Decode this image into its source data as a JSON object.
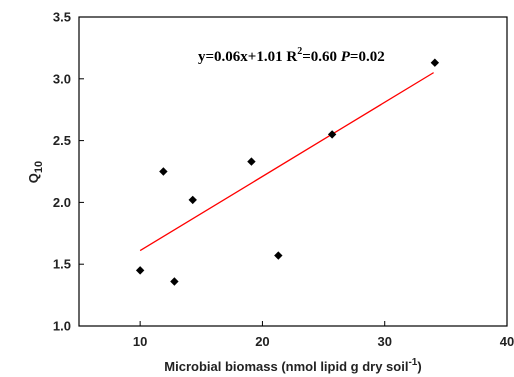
{
  "chart_data": {
    "type": "scatter",
    "xlabel": "Microbial biomass (nmol lipid g dry soil",
    "xlabel_sup": "-1",
    "xlabel_close": ")",
    "ylabel": "Q",
    "ylabel_sub": "10",
    "xlim": [
      5,
      40
    ],
    "ylim": [
      1.0,
      3.5
    ],
    "xticks": [
      10,
      20,
      30,
      40
    ],
    "xtick_labels": [
      "10",
      "20",
      "30",
      "40"
    ],
    "yticks": [
      1.0,
      1.5,
      2.0,
      2.5,
      3.0,
      3.5
    ],
    "ytick_labels": [
      "1.0",
      "1.5",
      "2.0",
      "2.5",
      "3.0",
      "3.5"
    ],
    "points": [
      {
        "x": 10.0,
        "y": 1.45
      },
      {
        "x": 11.9,
        "y": 2.25
      },
      {
        "x": 12.8,
        "y": 1.36
      },
      {
        "x": 14.3,
        "y": 2.02
      },
      {
        "x": 19.1,
        "y": 2.33
      },
      {
        "x": 21.3,
        "y": 1.57
      },
      {
        "x": 25.7,
        "y": 2.55
      },
      {
        "x": 34.1,
        "y": 3.13
      }
    ],
    "fit_line": {
      "x_start": 10.0,
      "x_end": 34.0,
      "slope": 0.06,
      "intercept": 1.01,
      "color": "#ff0000"
    },
    "point_color": "#000000",
    "equation": {
      "part1": "y=0.06x+1.01  R",
      "sup": "2",
      "part2": "=0.60  ",
      "p_label": "P",
      "p_value": "=0.02"
    },
    "grid": false
  }
}
